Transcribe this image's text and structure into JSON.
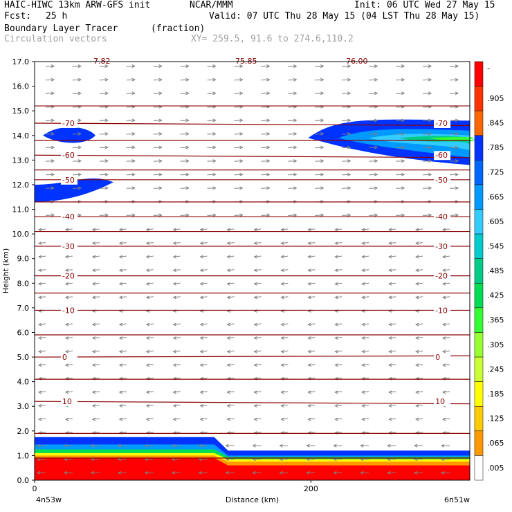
{
  "header": {
    "model": "HAIC-HIWC 13km ARW-GFS init",
    "org": "NCAR/MMM",
    "init": "Init: 06 UTC Wed 27 May 15",
    "fcst_label": "Fcst:",
    "fcst_value": "25 h",
    "valid": "Valid: 07 UTC Thu 28 May 15 (04 LST Thu 28 May 15)",
    "field": "Boundary Layer Tracer",
    "units": "(fraction)",
    "vectors": "Circulation vectors",
    "xy": "XY= 259.5, 91.6 to 274.6,110.2"
  },
  "colors": {
    "contour": "#8b0000",
    "vector": "#808080",
    "scale": [
      "#ffffff",
      "#ff9900",
      "#ffcc00",
      "#ffff00",
      "#ccff33",
      "#99ff33",
      "#33ff33",
      "#00dd55",
      "#00cc88",
      "#00cccc",
      "#33ccff",
      "#0099ff",
      "#0066ff",
      "#0033ff",
      "#ff6600",
      "#ff3300",
      "#ff0000"
    ]
  },
  "chart_data": {
    "type": "heatmap",
    "xlabel": "Distance (km)",
    "ylabel": "Height (km)",
    "x_ticks": [
      "0",
      "200"
    ],
    "x_end_labels": [
      "4n53w",
      "6n51w"
    ],
    "xlim": [
      0,
      315
    ],
    "ylim": [
      0,
      17
    ],
    "y_ticks": [
      "0.0",
      "1.0",
      "2.0",
      "3.0",
      "4.0",
      "5.0",
      "6.0",
      "7.0",
      "8.0",
      "9.0",
      "10.0",
      "11.0",
      "12.0",
      "13.0",
      "14.0",
      "15.0",
      "16.0",
      "17.0"
    ],
    "colorbar_labels": [
      "-",
      ".905",
      ".845",
      ".785",
      ".725",
      ".665",
      ".605",
      ".545",
      ".485",
      ".425",
      ".365",
      ".305",
      ".245",
      ".185",
      ".125",
      ".065",
      ".005"
    ],
    "top_labels": [
      "7.82",
      "75.85",
      "76.00"
    ],
    "temperature_contours": [
      {
        "label": "10",
        "y": [
          3.2,
          3.1
        ]
      },
      {
        "label": "0",
        "y": [
          5.0,
          5.05
        ]
      },
      {
        "label": "-10",
        "y": [
          6.9,
          6.9
        ]
      },
      {
        "label": "-20",
        "y": [
          8.3,
          8.3
        ]
      },
      {
        "label": "-30",
        "y": [
          9.5,
          9.5
        ]
      },
      {
        "label": "-40",
        "y": [
          10.7,
          10.7
        ]
      },
      {
        "label": "-50",
        "y": [
          12.2,
          12.2
        ]
      },
      {
        "label": "-60",
        "y": [
          13.2,
          13.1
        ]
      },
      {
        "label": "-70",
        "y": [
          14.5,
          14.4
        ]
      }
    ],
    "plain_isotherms_y": [
      0.9,
      1.9,
      4.1,
      5.9,
      7.6,
      10.1,
      11.3,
      12.6,
      13.8,
      15.2
    ]
  }
}
